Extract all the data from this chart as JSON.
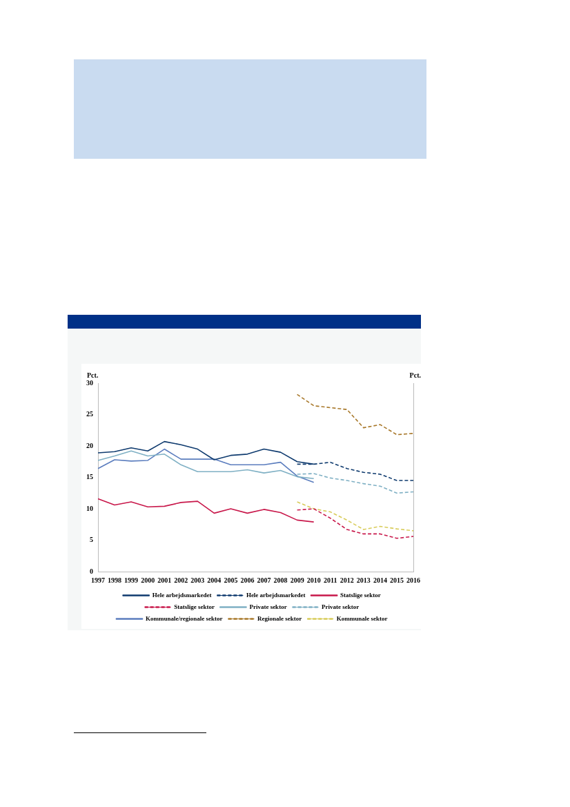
{
  "chart_data": {
    "type": "line",
    "ylabel": "Pct.",
    "y2label": "Pct.",
    "categories": [
      "1997",
      "1998",
      "1999",
      "2000",
      "2001",
      "2002",
      "2003",
      "2004",
      "2005",
      "2006",
      "2007",
      "2008",
      "2009",
      "2010",
      "2011",
      "2012",
      "2013",
      "2014",
      "2015",
      "2016"
    ],
    "ylim": [
      0,
      30
    ],
    "yticks": [
      0,
      5,
      10,
      15,
      20,
      25,
      30
    ],
    "grid": false,
    "legend": "bottom",
    "marker": "none",
    "series": [
      {
        "name": "Hele arbejdsmarkedet",
        "color": "#0e3a6e",
        "line_style": "solid",
        "values": [
          18.9,
          19.1,
          19.7,
          19.2,
          20.7,
          20.2,
          19.5,
          17.8,
          18.5,
          18.7,
          19.5,
          19.0,
          17.5,
          17.1,
          null,
          null,
          null,
          null,
          null,
          null
        ]
      },
      {
        "name": "Hele arbejdsmarkedet",
        "color": "#0e3a6e",
        "line_style": "dashed",
        "values": [
          null,
          null,
          null,
          null,
          null,
          null,
          null,
          null,
          null,
          null,
          null,
          null,
          17.1,
          17.1,
          17.4,
          16.4,
          15.8,
          15.5,
          14.5,
          14.5
        ]
      },
      {
        "name": "Statslige sektor",
        "color": "#c8174a",
        "line_style": "solid",
        "values": [
          11.6,
          10.6,
          11.1,
          10.3,
          10.4,
          11.0,
          11.2,
          9.3,
          10.0,
          9.3,
          9.9,
          9.4,
          8.2,
          7.9,
          null,
          null,
          null,
          null,
          null,
          null
        ]
      },
      {
        "name": "Statslige sektor",
        "color": "#c8174a",
        "line_style": "dashed",
        "values": [
          null,
          null,
          null,
          null,
          null,
          null,
          null,
          null,
          null,
          null,
          null,
          null,
          9.8,
          10.0,
          8.5,
          6.7,
          6.0,
          6.0,
          5.3,
          5.6
        ]
      },
      {
        "name": "Private sektor",
        "color": "#7fb0c4",
        "line_style": "solid",
        "values": [
          17.7,
          18.4,
          19.2,
          18.4,
          18.7,
          17.0,
          15.9,
          15.9,
          15.9,
          16.2,
          15.7,
          16.1,
          15.1,
          14.8,
          null,
          null,
          null,
          null,
          null,
          null
        ]
      },
      {
        "name": "Private sektor",
        "color": "#7fb0c4",
        "line_style": "dashed",
        "values": [
          null,
          null,
          null,
          null,
          null,
          null,
          null,
          null,
          null,
          null,
          null,
          null,
          15.5,
          15.6,
          14.9,
          14.5,
          14.0,
          13.6,
          12.5,
          12.7
        ]
      },
      {
        "name": "Kommunale/regionale sektor",
        "color": "#5b7dbe",
        "line_style": "solid",
        "values": [
          16.4,
          17.8,
          17.6,
          17.7,
          19.5,
          17.9,
          17.9,
          17.9,
          17.0,
          17.0,
          17.0,
          17.4,
          15.2,
          14.2,
          null,
          null,
          null,
          null,
          null,
          null
        ]
      },
      {
        "name": "Regionale sektor",
        "color": "#a8782a",
        "line_style": "dashed",
        "values": [
          null,
          null,
          null,
          null,
          null,
          null,
          null,
          null,
          null,
          null,
          null,
          null,
          28.2,
          26.4,
          26.1,
          25.8,
          22.9,
          23.4,
          21.8,
          22.0
        ]
      },
      {
        "name": "Kommunale sektor",
        "color": "#d8cc5a",
        "line_style": "dashed",
        "values": [
          null,
          null,
          null,
          null,
          null,
          null,
          null,
          null,
          null,
          null,
          null,
          null,
          11.1,
          10.0,
          9.5,
          8.2,
          6.7,
          7.2,
          6.8,
          6.5
        ]
      }
    ]
  }
}
